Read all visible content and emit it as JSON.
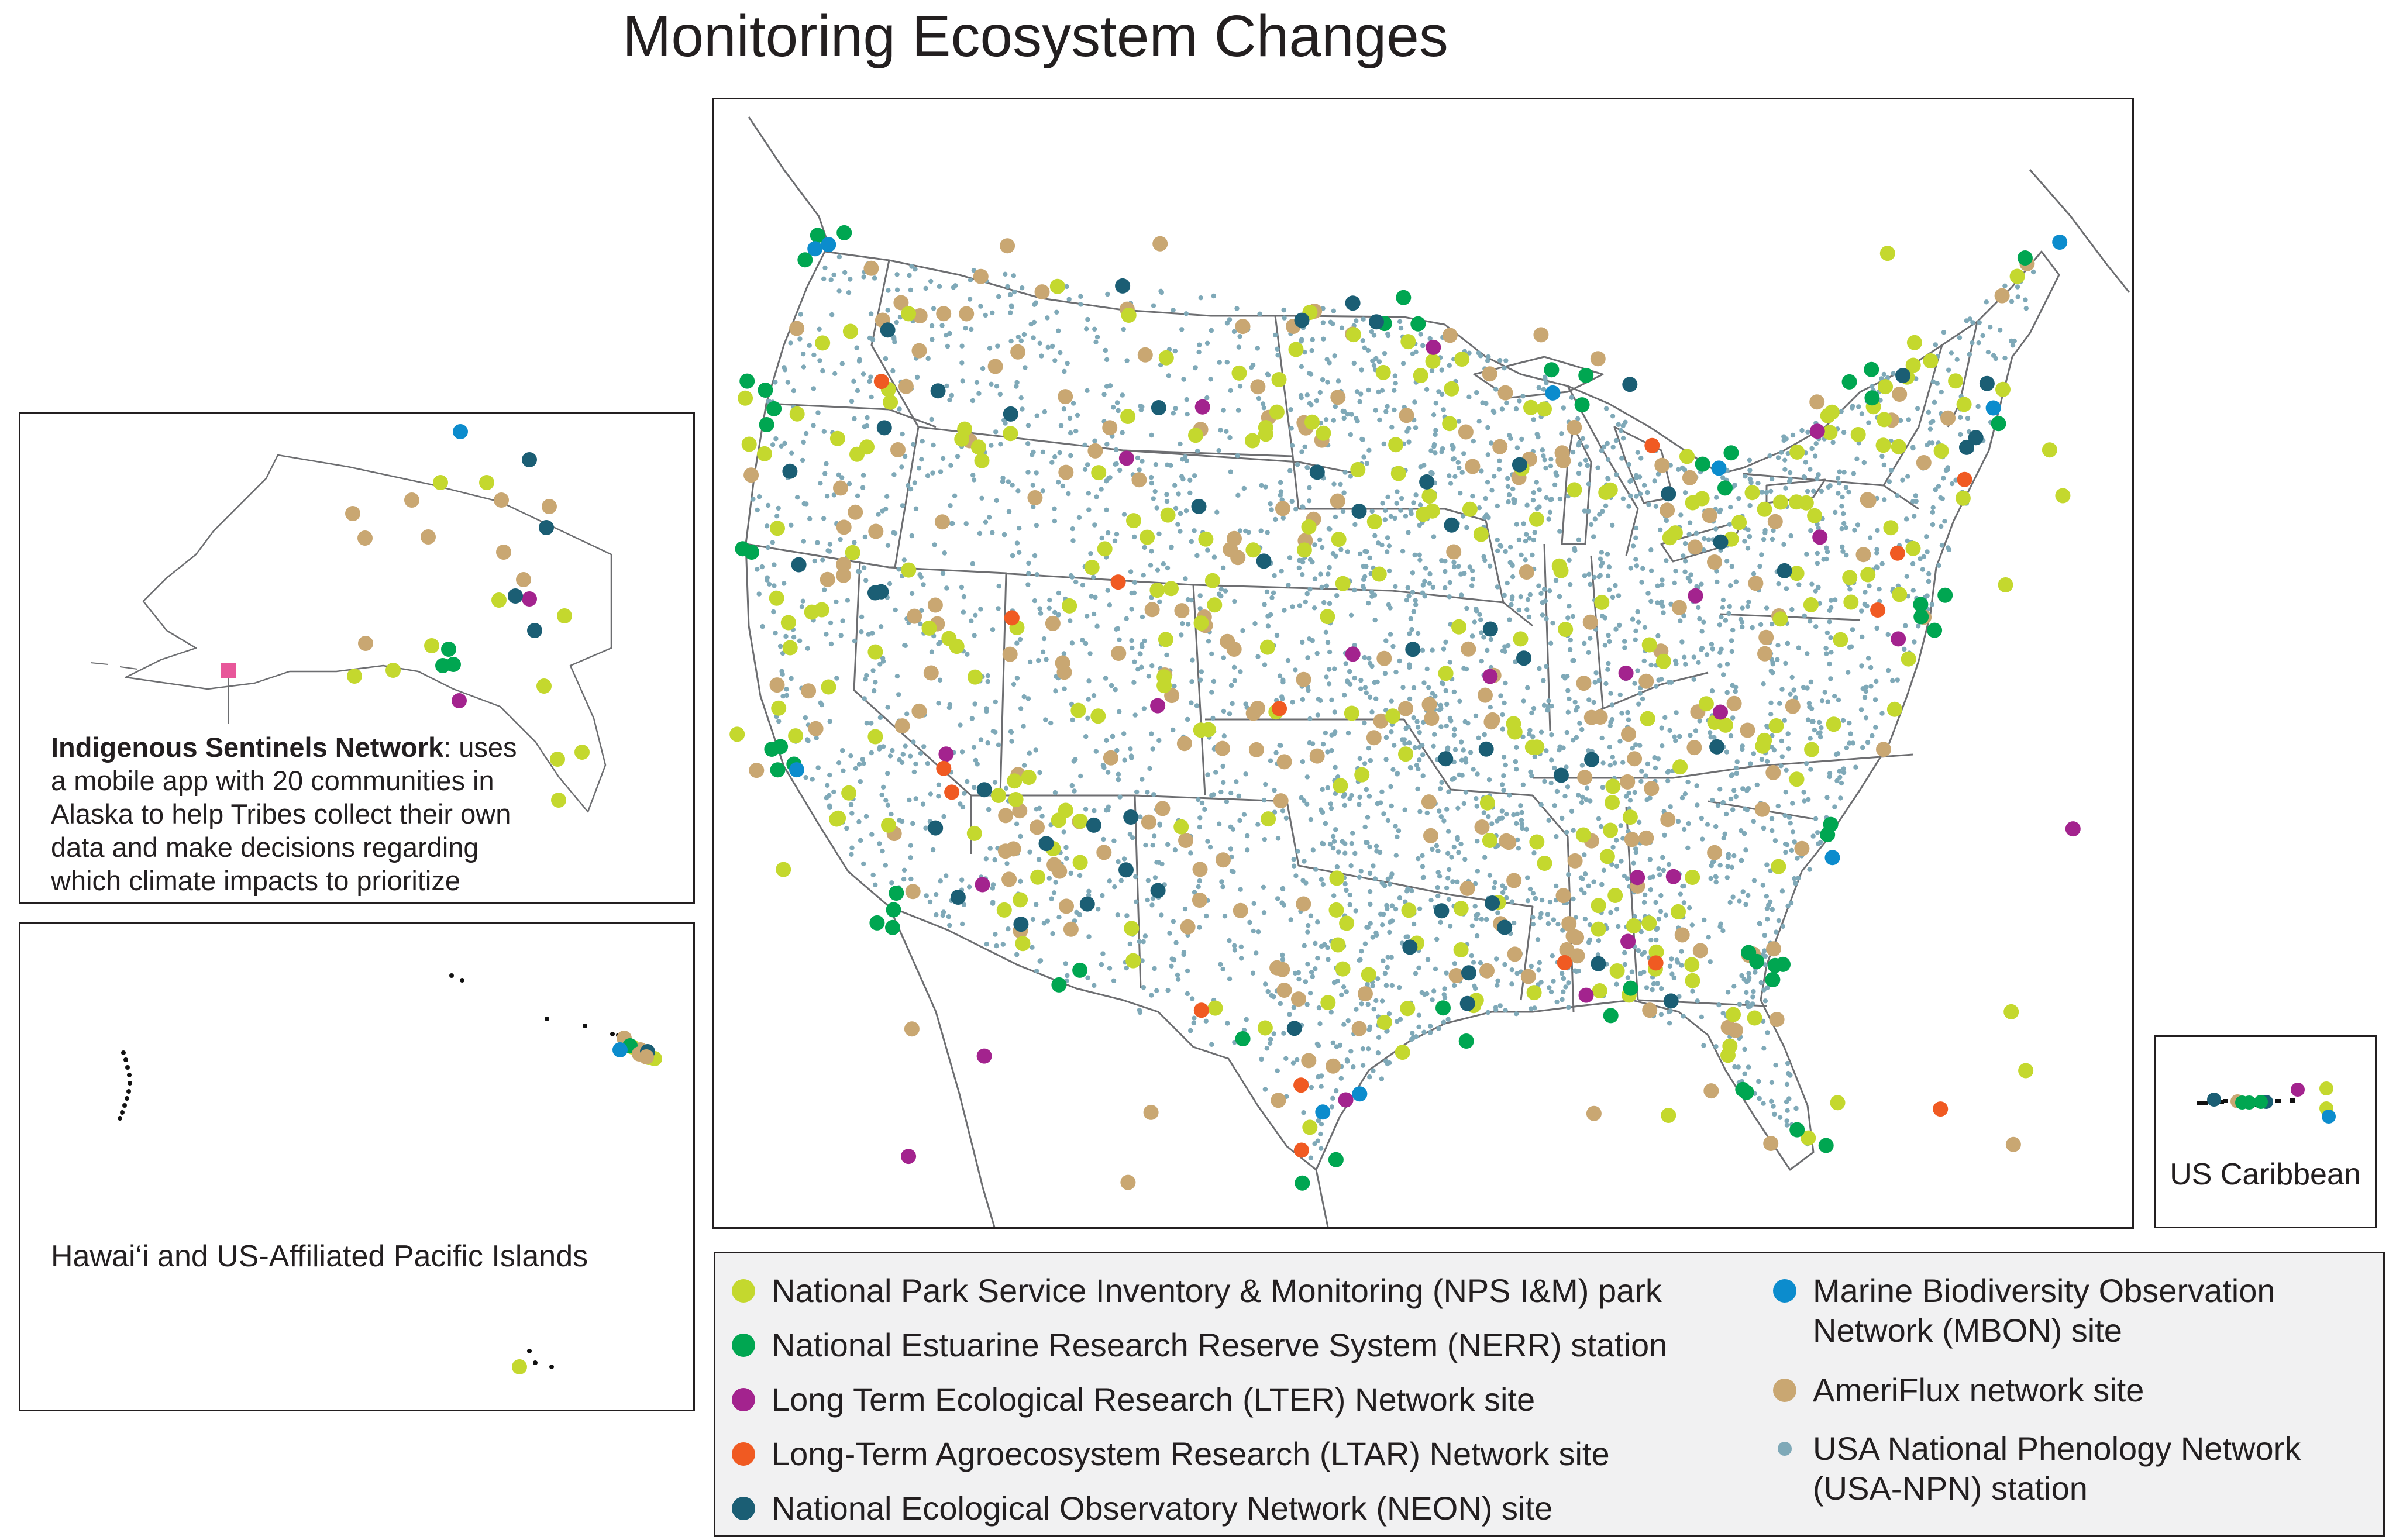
{
  "title": "Monitoring Ecosystem Changes",
  "colors": {
    "nps": "#c4d82e",
    "nerr": "#00a651",
    "lter": "#a3238e",
    "ltar": "#f05a22",
    "neon": "#1b5e74",
    "mbon": "#0c8ccd",
    "ameriflux": "#c9a772",
    "usa_npn": "#7fa9b8",
    "border": "#6d6e71",
    "sentinel_marker": "#e8579a"
  },
  "insets": {
    "alaska": {
      "sentinel_title": "Indigenous Sentinels Network",
      "sentinel_text": ": uses a mobile app with 20 communities in Alaska to help Tribes collect their own data and make decisions regarding which climate impacts to prioritize"
    },
    "hawaii": {
      "label": "Hawai‘i and US-Affiliated Pacific Islands"
    },
    "caribbean": {
      "label": "US Caribbean"
    }
  },
  "legend": {
    "items": [
      {
        "key": "nps",
        "label": "National Park Service Inventory & Monitoring (NPS I&M) park"
      },
      {
        "key": "nerr",
        "label": "National Estuarine Research Reserve System (NERR) station"
      },
      {
        "key": "lter",
        "label": "Long Term Ecological Research (LTER) Network site"
      },
      {
        "key": "ltar",
        "label": "Long-Term Agroecosystem Research (LTAR) Network site"
      },
      {
        "key": "neon",
        "label": "National Ecological Observatory Network (NEON) site"
      },
      {
        "key": "mbon",
        "label": "Marine Biodiversity Observation Network (MBON) site"
      },
      {
        "key": "ameriflux",
        "label": "AmeriFlux network site"
      },
      {
        "key": "usa_npn",
        "label": "USA National Phenology Network (USA-NPN) station"
      }
    ]
  }
}
